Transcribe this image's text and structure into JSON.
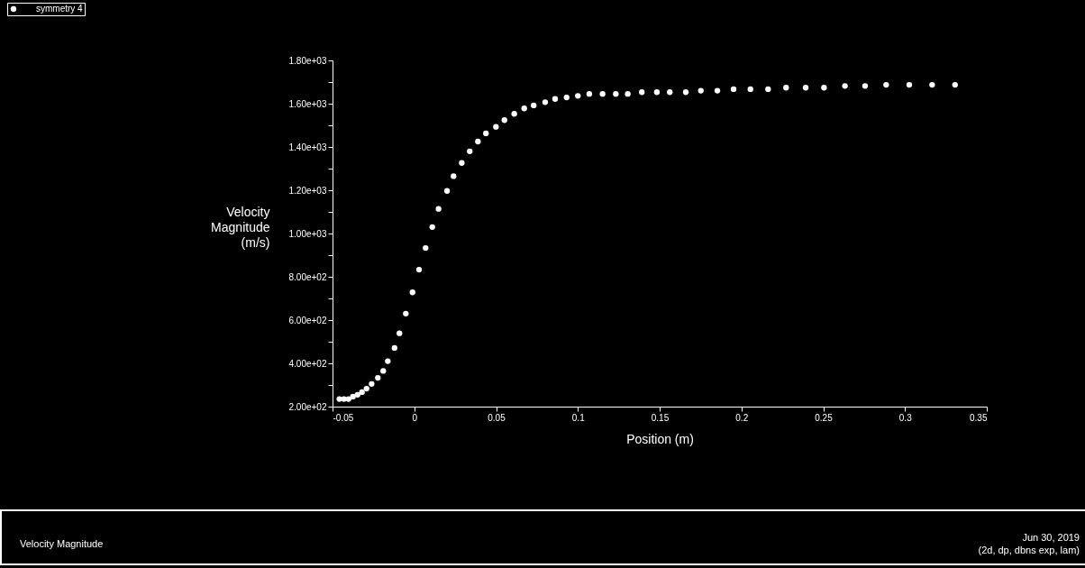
{
  "chart_data": {
    "type": "scatter",
    "xlabel": "Position (m)",
    "ylabel": "Velocity Magnitude (m/s)",
    "x": [
      -0.0458,
      -0.043,
      -0.0402,
      -0.0375,
      -0.0347,
      -0.032,
      -0.0292,
      -0.0261,
      -0.0223,
      -0.019,
      -0.0162,
      -0.0121,
      -0.0091,
      -0.0052,
      -0.0011,
      0.0029,
      0.0069,
      0.011,
      0.0148,
      0.02,
      0.024,
      0.029,
      0.0339,
      0.0389,
      0.0438,
      0.0499,
      0.0551,
      0.0611,
      0.0672,
      0.073,
      0.08,
      0.0861,
      0.0931,
      0.1,
      0.107,
      0.1151,
      0.1232,
      0.1305,
      0.1391,
      0.1483,
      0.1562,
      0.166,
      0.1752,
      0.1853,
      0.1952,
      0.2055,
      0.2163,
      0.2273,
      0.2393,
      0.2505,
      0.2633,
      0.2756,
      0.2885,
      0.3026,
      0.3166,
      0.3306
    ],
    "series": [
      {
        "name": "symmetry 4",
        "color": "#ffffff",
        "values": [
          235,
          235,
          235,
          246,
          255,
          267,
          283,
          305,
          333,
          365,
          410,
          471,
          539,
          630,
          728,
          833,
          933,
          1030,
          1114,
          1197,
          1265,
          1326,
          1380,
          1425,
          1463,
          1493,
          1524,
          1553,
          1578,
          1592,
          1607,
          1622,
          1629,
          1636,
          1645,
          1645,
          1645,
          1645,
          1653,
          1653,
          1653,
          1653,
          1660,
          1660,
          1667,
          1667,
          1667,
          1674,
          1674,
          1674,
          1682,
          1682,
          1687,
          1687,
          1687,
          1687
        ]
      }
    ],
    "xlim": [
      -0.05,
      0.35
    ],
    "xticks": [
      -0.05,
      0,
      0.05,
      0.1,
      0.15,
      0.2,
      0.25,
      0.3,
      0.35
    ],
    "ylim": [
      200,
      1800
    ],
    "yticks": [
      {
        "value": 200,
        "label": "2.00e+02"
      },
      {
        "value": 300,
        "label": null
      },
      {
        "value": 400,
        "label": "4.00e+02"
      },
      {
        "value": 500,
        "label": null
      },
      {
        "value": 600,
        "label": "6.00e+02"
      },
      {
        "value": 700,
        "label": null
      },
      {
        "value": 800,
        "label": "8.00e+02"
      },
      {
        "value": 900,
        "label": null
      },
      {
        "value": 1000,
        "label": "1.00e+03"
      },
      {
        "value": 1100,
        "label": null
      },
      {
        "value": 1200,
        "label": "1.20e+03"
      },
      {
        "value": 1300,
        "label": null
      },
      {
        "value": 1400,
        "label": "1.40e+03"
      },
      {
        "value": 1500,
        "label": null
      },
      {
        "value": 1600,
        "label": "1.60e+03"
      },
      {
        "value": 1700,
        "label": null
      },
      {
        "value": 1800,
        "label": "1.80e+03"
      }
    ],
    "marker": "circle",
    "legend": "top left",
    "annotations": [
      "Velocity Magnitude",
      "Jun 30, 2019",
      "(2d, dp, dbns exp, lam)"
    ]
  }
}
